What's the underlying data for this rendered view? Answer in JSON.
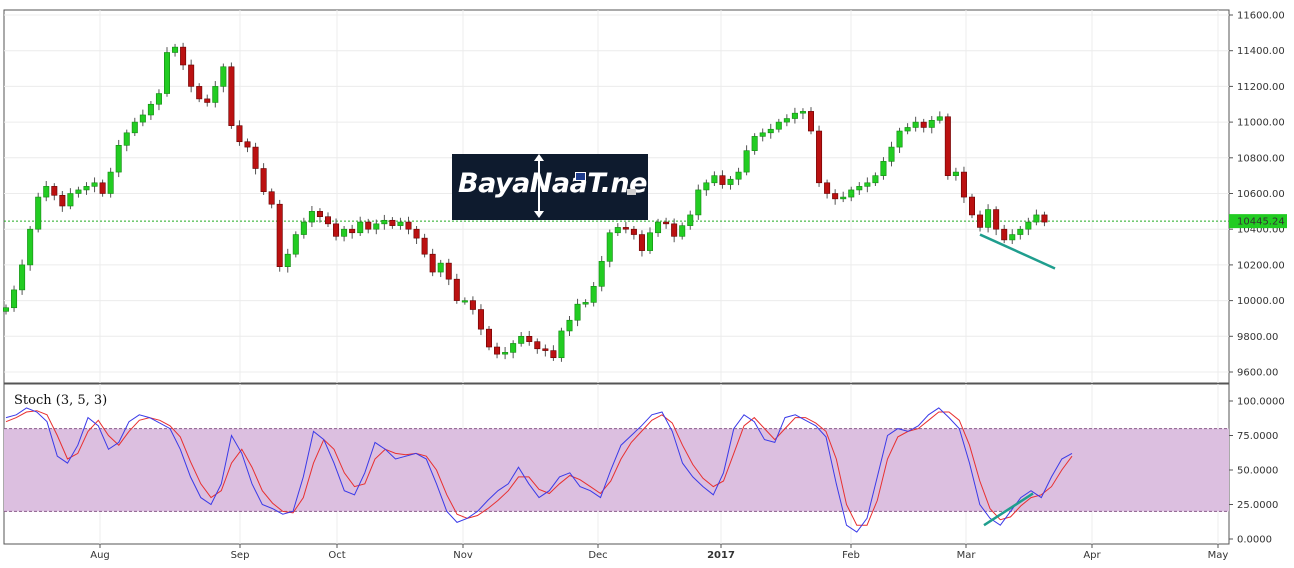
{
  "chart_data": [
    {
      "type": "candlestick",
      "name": "price",
      "ylim": [
        9550,
        11620
      ],
      "y_ticks": [
        "11600.00",
        "11400.00",
        "11200.00",
        "11000.00",
        "10800.00",
        "10600.00",
        "10400.00",
        "10200.00",
        "10000.00",
        "9800.00",
        "9600.00"
      ],
      "x_ticks": [
        "Aug",
        "Sep",
        "Oct",
        "Nov",
        "Dec",
        "2017",
        "Feb",
        "Mar",
        "Apr",
        "May"
      ],
      "last_price": 10445.24,
      "last_price_label": "10445.24",
      "closes": [
        9960,
        10060,
        10200,
        10400,
        10580,
        10640,
        10590,
        10530,
        10600,
        10620,
        10640,
        10660,
        10600,
        10720,
        10870,
        10940,
        11000,
        11040,
        11100,
        11160,
        11390,
        11420,
        11320,
        11200,
        11130,
        11110,
        11200,
        11310,
        10980,
        10890,
        10860,
        10740,
        10610,
        10540,
        10190,
        10260,
        10370,
        10440,
        10500,
        10470,
        10430,
        10360,
        10400,
        10380,
        10440,
        10400,
        10430,
        10450,
        10420,
        10440,
        10400,
        10350,
        10260,
        10160,
        10210,
        10120,
        10000,
        10000,
        9950,
        9840,
        9740,
        9700,
        9710,
        9760,
        9800,
        9770,
        9730,
        9720,
        9680,
        9830,
        9890,
        9980,
        9990,
        10080,
        10220,
        10380,
        10410,
        10400,
        10370,
        10280,
        10380,
        10440,
        10430,
        10360,
        10420,
        10480,
        10620,
        10660,
        10700,
        10650,
        10680,
        10720,
        10840,
        10920,
        10940,
        10960,
        11000,
        11020,
        11050,
        11060,
        10950,
        10660,
        10600,
        10570,
        10580,
        10620,
        10640,
        10660,
        10700,
        10780,
        10860,
        10950,
        10970,
        11000,
        10970,
        11010,
        11030,
        10700,
        10720,
        10580,
        10480,
        10410,
        10510,
        10400,
        10340,
        10370,
        10400,
        10440,
        10480,
        10440
      ],
      "start_x": 6,
      "spacing": 8.05,
      "support_line": {
        "from": [
          980,
          10370
        ],
        "to": [
          1055,
          10180
        ]
      }
    },
    {
      "type": "line",
      "name": "stochastic",
      "title": "Stoch (3, 5, 3)",
      "ylim": [
        0,
        100
      ],
      "y_ticks": [
        "100.0000",
        "75.0000",
        "50.0000",
        "25.0000",
        "0.0000"
      ],
      "band": [
        20,
        80
      ],
      "k": [
        88,
        90,
        95,
        92,
        85,
        60,
        55,
        68,
        88,
        82,
        65,
        70,
        85,
        90,
        88,
        84,
        80,
        65,
        45,
        30,
        25,
        40,
        75,
        62,
        40,
        25,
        22,
        18,
        20,
        45,
        78,
        72,
        55,
        35,
        32,
        48,
        70,
        65,
        58,
        60,
        62,
        58,
        40,
        20,
        12,
        15,
        20,
        28,
        35,
        40,
        52,
        40,
        30,
        35,
        45,
        48,
        38,
        35,
        30,
        50,
        68,
        75,
        82,
        90,
        92,
        78,
        55,
        45,
        38,
        32,
        48,
        80,
        90,
        85,
        72,
        70,
        88,
        90,
        86,
        82,
        74,
        40,
        10,
        5,
        15,
        45,
        75,
        80,
        78,
        82,
        90,
        95,
        88,
        80,
        55,
        25,
        15,
        10,
        20,
        30,
        35,
        30,
        45,
        58,
        62
      ],
      "d": [
        85,
        88,
        92,
        93,
        90,
        75,
        58,
        62,
        78,
        86,
        75,
        68,
        78,
        86,
        88,
        86,
        82,
        74,
        56,
        40,
        30,
        35,
        55,
        65,
        52,
        35,
        26,
        20,
        19,
        30,
        55,
        72,
        65,
        48,
        38,
        40,
        58,
        65,
        62,
        61,
        62,
        60,
        50,
        32,
        18,
        15,
        17,
        22,
        28,
        35,
        45,
        45,
        36,
        33,
        40,
        46,
        43,
        38,
        33,
        42,
        58,
        70,
        78,
        86,
        90,
        84,
        68,
        54,
        44,
        38,
        42,
        62,
        82,
        88,
        80,
        72,
        80,
        88,
        88,
        84,
        78,
        58,
        25,
        10,
        10,
        28,
        58,
        74,
        78,
        80,
        86,
        92,
        92,
        86,
        68,
        42,
        22,
        14,
        16,
        24,
        30,
        32,
        38,
        50,
        60
      ],
      "start_x": 6,
      "spacing": 10.25,
      "support_line": {
        "from": [
          984,
          10
        ],
        "to": [
          1033,
          33
        ]
      }
    }
  ],
  "watermark": {
    "text": "BayaNaaT.net"
  }
}
